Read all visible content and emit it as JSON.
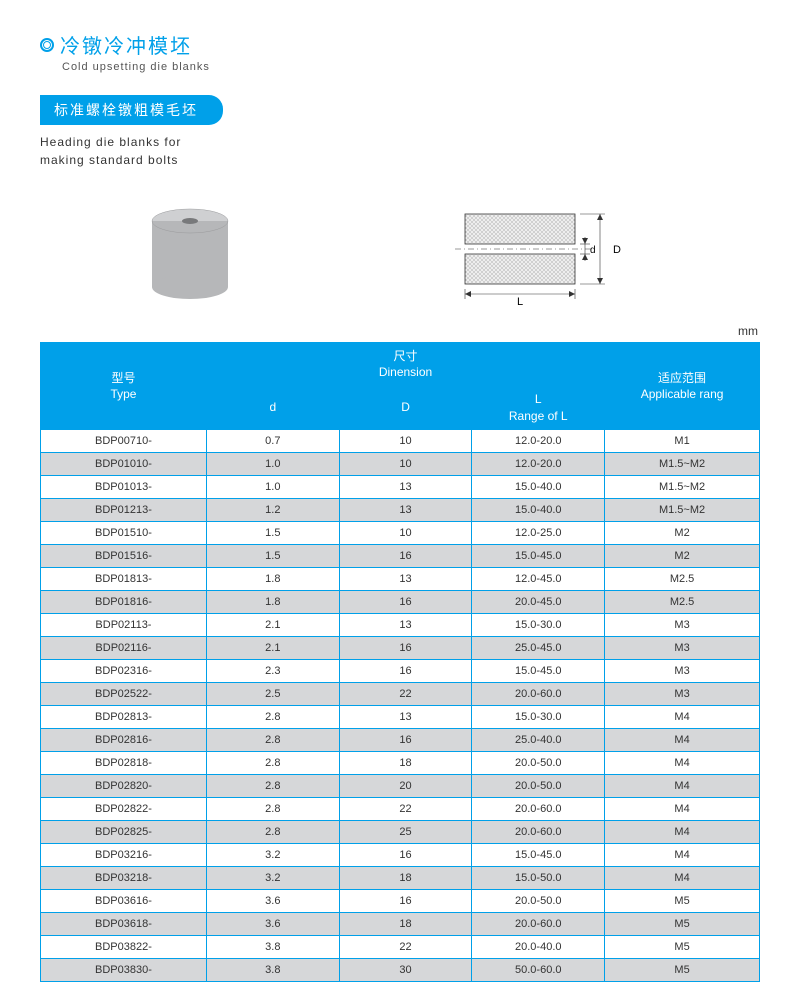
{
  "header": {
    "title_cn": "冷镦冷冲模坯",
    "title_en": "Cold upsetting die blanks",
    "pill": "标准螺栓镦粗模毛坯",
    "sub_en_1": "Heading die blanks for",
    "sub_en_2": "making standard bolts",
    "unit": "mm"
  },
  "colors": {
    "accent": "#00a0e9",
    "row_alt": "#d6d7d9",
    "text": "#333333",
    "white": "#ffffff"
  },
  "diagram": {
    "cyl_fill": "#b6b7b9",
    "cyl_top": "#cfd0d2",
    "hole": "#8a8b8d",
    "hatch": "#888888",
    "label_L": "L",
    "label_D": "D",
    "label_d": "d"
  },
  "table": {
    "head": {
      "type_cn": "型号",
      "type_en": "Type",
      "dim_cn": "尺寸",
      "dim_en": "Dinension",
      "d": "d",
      "D": "D",
      "L_cn": "L",
      "L_en": "Range of L",
      "rang_cn": "适应范围",
      "rang_en": "Applicable rang"
    },
    "rows": [
      {
        "type": "BDP00710-",
        "d": "0.7",
        "D": "10",
        "L": "12.0-20.0",
        "rang": "M1"
      },
      {
        "type": "BDP01010-",
        "d": "1.0",
        "D": "10",
        "L": "12.0-20.0",
        "rang": "M1.5~M2"
      },
      {
        "type": "BDP01013-",
        "d": "1.0",
        "D": "13",
        "L": "15.0-40.0",
        "rang": "M1.5~M2"
      },
      {
        "type": "BDP01213-",
        "d": "1.2",
        "D": "13",
        "L": "15.0-40.0",
        "rang": "M1.5~M2"
      },
      {
        "type": "BDP01510-",
        "d": "1.5",
        "D": "10",
        "L": "12.0-25.0",
        "rang": "M2"
      },
      {
        "type": "BDP01516-",
        "d": "1.5",
        "D": "16",
        "L": "15.0-45.0",
        "rang": "M2"
      },
      {
        "type": "BDP01813-",
        "d": "1.8",
        "D": "13",
        "L": "12.0-45.0",
        "rang": "M2.5"
      },
      {
        "type": "BDP01816-",
        "d": "1.8",
        "D": "16",
        "L": "20.0-45.0",
        "rang": "M2.5"
      },
      {
        "type": "BDP02113-",
        "d": "2.1",
        "D": "13",
        "L": "15.0-30.0",
        "rang": "M3"
      },
      {
        "type": "BDP02116-",
        "d": "2.1",
        "D": "16",
        "L": "25.0-45.0",
        "rang": "M3"
      },
      {
        "type": "BDP02316-",
        "d": "2.3",
        "D": "16",
        "L": "15.0-45.0",
        "rang": "M3"
      },
      {
        "type": "BDP02522-",
        "d": "2.5",
        "D": "22",
        "L": "20.0-60.0",
        "rang": "M3"
      },
      {
        "type": "BDP02813-",
        "d": "2.8",
        "D": "13",
        "L": "15.0-30.0",
        "rang": "M4"
      },
      {
        "type": "BDP02816-",
        "d": "2.8",
        "D": "16",
        "L": "25.0-40.0",
        "rang": "M4"
      },
      {
        "type": "BDP02818-",
        "d": "2.8",
        "D": "18",
        "L": "20.0-50.0",
        "rang": "M4"
      },
      {
        "type": "BDP02820-",
        "d": "2.8",
        "D": "20",
        "L": "20.0-50.0",
        "rang": "M4"
      },
      {
        "type": "BDP02822-",
        "d": "2.8",
        "D": "22",
        "L": "20.0-60.0",
        "rang": "M4"
      },
      {
        "type": "BDP02825-",
        "d": "2.8",
        "D": "25",
        "L": "20.0-60.0",
        "rang": "M4"
      },
      {
        "type": "BDP03216-",
        "d": "3.2",
        "D": "16",
        "L": "15.0-45.0",
        "rang": "M4"
      },
      {
        "type": "BDP03218-",
        "d": "3.2",
        "D": "18",
        "L": "15.0-50.0",
        "rang": "M4"
      },
      {
        "type": "BDP03616-",
        "d": "3.6",
        "D": "16",
        "L": "20.0-50.0",
        "rang": "M5"
      },
      {
        "type": "BDP03618-",
        "d": "3.6",
        "D": "18",
        "L": "20.0-60.0",
        "rang": "M5"
      },
      {
        "type": "BDP03822-",
        "d": "3.8",
        "D": "22",
        "L": "20.0-40.0",
        "rang": "M5"
      },
      {
        "type": "BDP03830-",
        "d": "3.8",
        "D": "30",
        "L": "50.0-60.0",
        "rang": "M5"
      }
    ]
  }
}
